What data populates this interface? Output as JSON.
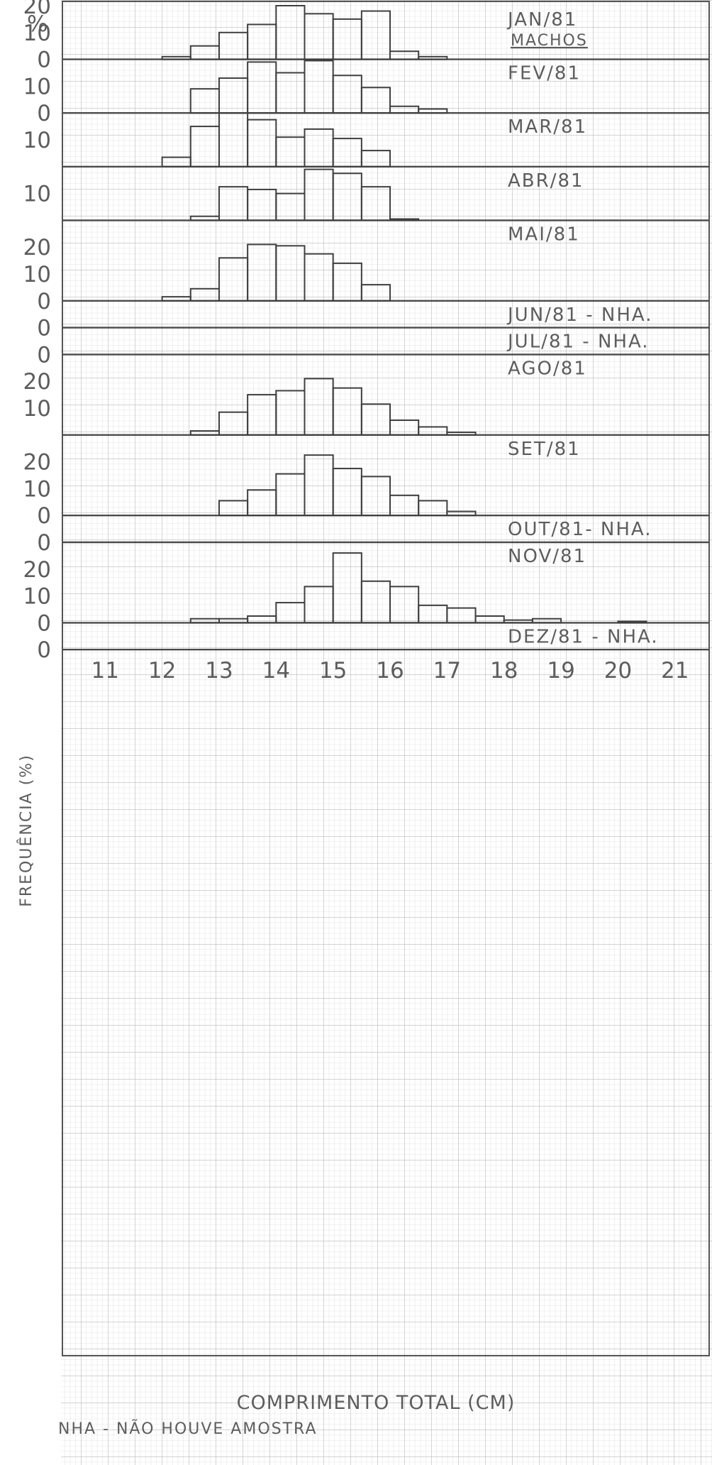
{
  "header_text": "MACHOS",
  "y_unit": "%",
  "y_axis_label": "FREQUÊNCIA (%)",
  "x_axis_label": "COMPRIMENTO TOTAL (CM)",
  "note": "NHA - NÃO HOUVE AMOSTRA",
  "colors": {
    "grid_minor": "#dcdcdc",
    "grid_major": "#b9b9b9",
    "ink": "#3f3f3f"
  },
  "chart_data": {
    "type": "bar",
    "subtype": "stacked monthly histograms",
    "x_ticks": [
      11,
      12,
      13,
      14,
      15,
      16,
      17,
      18,
      19,
      20,
      21
    ],
    "xlim": [
      10.25,
      21.6
    ],
    "bin_width": 0.5,
    "bin_starts": [
      12,
      12.5,
      13,
      13.5,
      14,
      14.5,
      15,
      15.5,
      16,
      16.5,
      17,
      17.5,
      18,
      18.5,
      19,
      19.5,
      20,
      20.5
    ],
    "panels": [
      {
        "label": "JAN/81",
        "ylim": [
          0,
          20
        ],
        "y_ticks": [
          0,
          10,
          20
        ],
        "values": [
          1,
          5,
          10,
          13,
          20,
          17,
          15,
          18,
          3,
          1,
          0,
          0,
          0,
          0,
          0,
          0,
          0,
          0
        ]
      },
      {
        "label": "FEV/81",
        "ylim": [
          0,
          20
        ],
        "y_ticks": [
          0,
          10
        ],
        "values": [
          0,
          9,
          13,
          19,
          15,
          19.5,
          14,
          9.5,
          2.5,
          1.5,
          0,
          0,
          0,
          0,
          0,
          0,
          0,
          0
        ]
      },
      {
        "label": "MAR/81",
        "ylim": [
          0,
          20
        ],
        "y_ticks": [
          10
        ],
        "values": [
          3.5,
          15,
          20,
          17.5,
          11,
          14,
          10.5,
          6,
          0,
          0,
          0,
          0,
          0,
          0,
          0,
          0,
          0,
          0
        ]
      },
      {
        "label": "ABR/81",
        "ylim": [
          0,
          20
        ],
        "y_ticks": [
          10
        ],
        "values": [
          0,
          1.5,
          12.5,
          11.5,
          10,
          19,
          17.5,
          12.5,
          0.5,
          0,
          0,
          0,
          0,
          0,
          0,
          0,
          0,
          0
        ]
      },
      {
        "label": "MAI/81",
        "ylim": [
          0,
          30
        ],
        "y_ticks": [
          0,
          10,
          20
        ],
        "values": [
          1.5,
          4.5,
          16,
          21,
          20.5,
          17.5,
          14,
          6,
          0,
          0,
          0,
          0,
          0,
          0,
          0,
          0,
          0,
          0
        ]
      },
      {
        "label": "JUN/81 - NHA.",
        "ylim": [
          0,
          10
        ],
        "y_ticks": [
          0
        ],
        "values": []
      },
      {
        "label": "JUL/81 - NHA.",
        "ylim": [
          0,
          10
        ],
        "y_ticks": [
          0
        ],
        "values": []
      },
      {
        "label": "AGO/81",
        "ylim": [
          0,
          30
        ],
        "y_ticks": [
          10,
          20
        ],
        "values": [
          0,
          1.5,
          8.5,
          15,
          16.5,
          21,
          17.5,
          11.5,
          5.5,
          3,
          1,
          0,
          0,
          0,
          0,
          0,
          0,
          0
        ]
      },
      {
        "label": "SET/81",
        "ylim": [
          0,
          30
        ],
        "y_ticks": [
          0,
          10,
          20
        ],
        "values": [
          0,
          0,
          5.5,
          9.5,
          15.5,
          22.5,
          17.5,
          14.5,
          7.5,
          5.5,
          1.5,
          0,
          0,
          0,
          0,
          0,
          0,
          0
        ]
      },
      {
        "label": "OUT/81- NHA.",
        "ylim": [
          0,
          10
        ],
        "y_ticks": [
          0
        ],
        "values": []
      },
      {
        "label": "NOV/81",
        "ylim": [
          0,
          30
        ],
        "y_ticks": [
          0,
          10,
          20
        ],
        "values": [
          0,
          1.5,
          1.5,
          2.5,
          7.5,
          13.5,
          26,
          15.5,
          13.5,
          6.5,
          5.5,
          2.5,
          1,
          1.5,
          0,
          0,
          0.5,
          0
        ]
      },
      {
        "label": "DEZ/81 - NHA.",
        "ylim": [
          0,
          10
        ],
        "y_ticks": [
          0
        ],
        "values": []
      }
    ]
  }
}
